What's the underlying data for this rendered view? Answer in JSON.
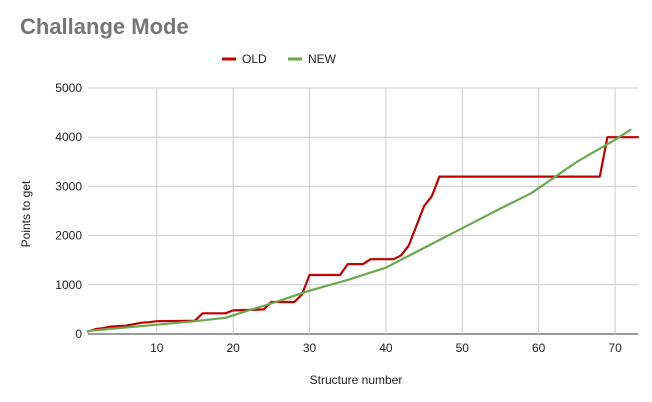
{
  "chart_data": {
    "type": "line",
    "title": "Challange Mode",
    "xlabel": "Structure number",
    "ylabel": "Points to get",
    "xlim": [
      1,
      73
    ],
    "ylim": [
      0,
      5000
    ],
    "x_ticks": [
      10,
      20,
      30,
      40,
      50,
      60,
      70
    ],
    "y_ticks": [
      0,
      1000,
      2000,
      3000,
      4000,
      5000
    ],
    "grid": true,
    "legend_position": "top",
    "series": [
      {
        "name": "OLD",
        "color": "#c00000",
        "points": [
          [
            1,
            50
          ],
          [
            2,
            100
          ],
          [
            3,
            120
          ],
          [
            4,
            150
          ],
          [
            5,
            160
          ],
          [
            6,
            170
          ],
          [
            7,
            200
          ],
          [
            8,
            230
          ],
          [
            9,
            240
          ],
          [
            10,
            260
          ],
          [
            15,
            270
          ],
          [
            16,
            420
          ],
          [
            19,
            420
          ],
          [
            20,
            480
          ],
          [
            24,
            500
          ],
          [
            25,
            650
          ],
          [
            28,
            650
          ],
          [
            29,
            800
          ],
          [
            30,
            1200
          ],
          [
            34,
            1200
          ],
          [
            35,
            1420
          ],
          [
            37,
            1420
          ],
          [
            38,
            1520
          ],
          [
            41,
            1520
          ],
          [
            42,
            1600
          ],
          [
            43,
            1800
          ],
          [
            45,
            2600
          ],
          [
            46,
            2800
          ],
          [
            47,
            3200
          ],
          [
            68,
            3200
          ],
          [
            69,
            4000
          ],
          [
            73,
            4000
          ]
        ]
      },
      {
        "name": "NEW",
        "color": "#6aa84f",
        "points": [
          [
            1,
            60
          ],
          [
            5,
            120
          ],
          [
            10,
            190
          ],
          [
            15,
            260
          ],
          [
            19,
            330
          ],
          [
            22,
            480
          ],
          [
            25,
            620
          ],
          [
            30,
            880
          ],
          [
            35,
            1100
          ],
          [
            40,
            1350
          ],
          [
            45,
            1750
          ],
          [
            50,
            2150
          ],
          [
            55,
            2550
          ],
          [
            59,
            2860
          ],
          [
            65,
            3500
          ],
          [
            70,
            3950
          ],
          [
            72,
            4150
          ]
        ]
      }
    ]
  }
}
